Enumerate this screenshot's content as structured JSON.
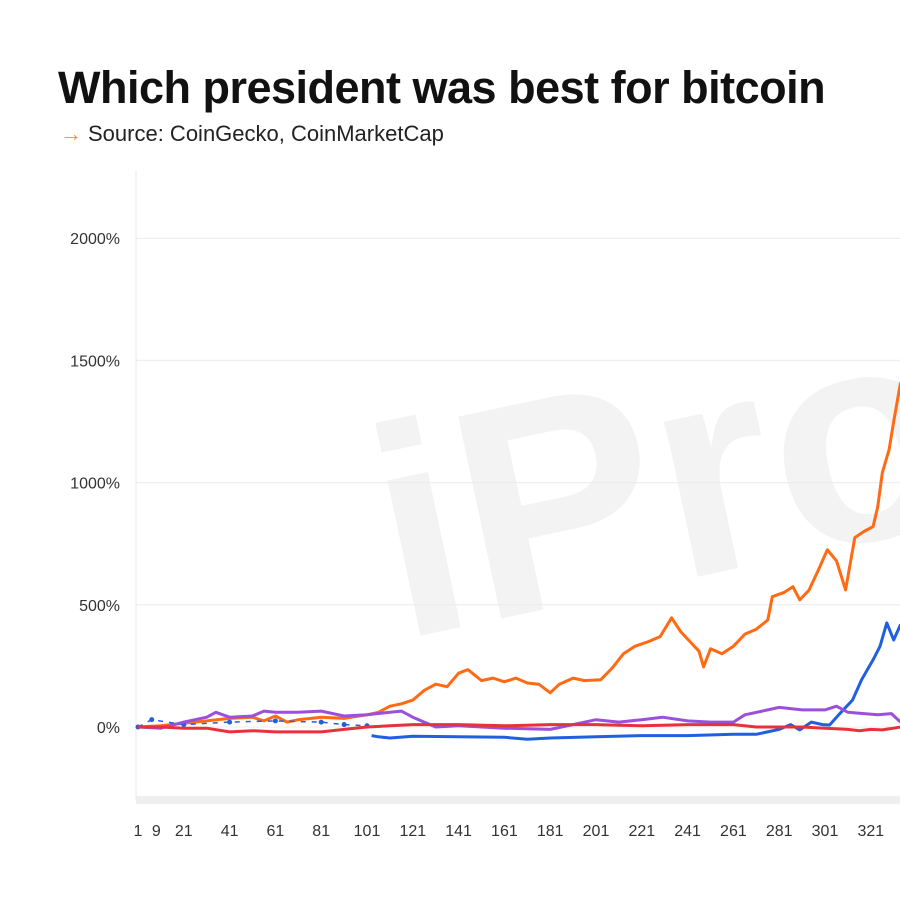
{
  "title": "Which president was best for bitcoin",
  "subtitle": {
    "arrow_icon": "arrow-right-icon",
    "text": "Source: CoinGecko, CoinMarketCap",
    "arrow_color": "#f7931a"
  },
  "watermark": "iProt",
  "chart_data": {
    "type": "line",
    "title": "Which president was best for bitcoin",
    "xlabel": "",
    "ylabel": "",
    "ylim": [
      -300,
      2300
    ],
    "xlim": [
      1,
      334
    ],
    "grid": true,
    "legend": "none",
    "y_ticks": [
      "2000%",
      "1500%",
      "1000%",
      "500%",
      "0%"
    ],
    "y_tick_values": [
      2000,
      1500,
      1000,
      500,
      0
    ],
    "x_ticks": [
      "1",
      "9",
      "21",
      "41",
      "61",
      "81",
      "101",
      "121",
      "141",
      "161",
      "181",
      "201",
      "221",
      "241",
      "261",
      "281",
      "301",
      "321"
    ],
    "x_tick_values": [
      1,
      9,
      21,
      41,
      61,
      81,
      101,
      121,
      141,
      161,
      181,
      201,
      221,
      241,
      261,
      281,
      301,
      321
    ],
    "series": [
      {
        "color": "#ff6a13",
        "x": [
          1,
          11,
          21,
          31,
          41,
          51,
          56,
          61,
          66,
          71,
          81,
          91,
          101,
          106,
          111,
          116,
          121,
          126,
          131,
          136,
          141,
          145,
          151,
          156,
          161,
          166,
          171,
          176,
          181,
          185,
          191,
          196,
          203,
          208,
          213,
          218,
          224,
          229,
          234,
          238,
          242,
          246,
          248,
          251,
          256,
          261,
          266,
          271,
          276,
          278,
          283,
          287,
          290,
          294,
          298,
          302,
          306,
          310,
          314,
          318,
          322,
          324,
          326,
          329,
          331,
          334
        ],
        "y": [
          0,
          5,
          15,
          25,
          35,
          40,
          25,
          45,
          20,
          30,
          40,
          35,
          50,
          60,
          85,
          95,
          110,
          150,
          175,
          165,
          220,
          235,
          190,
          200,
          185,
          200,
          180,
          175,
          140,
          175,
          200,
          190,
          193,
          240,
          300,
          330,
          350,
          370,
          447,
          390,
          350,
          310,
          246,
          320,
          300,
          330,
          380,
          400,
          438,
          533,
          550,
          574,
          520,
          560,
          640,
          725,
          680,
          561,
          775,
          800,
          820,
          900,
          1040,
          1135,
          1250,
          1410
        ]
      },
      {
        "color": "#1f5fe0",
        "x": [
          103,
          106,
          111,
          121,
          141,
          161,
          171,
          181,
          201,
          221,
          241,
          261,
          271,
          281,
          286,
          290,
          295,
          300,
          303,
          308,
          313,
          317,
          322,
          325,
          328,
          331,
          334
        ],
        "y": [
          -35,
          -40,
          -45,
          -38,
          -40,
          -42,
          -50,
          -45,
          -40,
          -35,
          -35,
          -30,
          -30,
          -10,
          10,
          -12,
          20,
          10,
          8,
          60,
          110,
          193,
          275,
          330,
          426,
          356,
          420
        ]
      },
      {
        "color": "#1f5fe0",
        "dashed": true,
        "x": [
          1,
          7,
          21,
          41,
          61,
          81,
          91,
          101
        ],
        "y": [
          0,
          30,
          10,
          20,
          25,
          20,
          10,
          5
        ]
      },
      {
        "color": "#9b4fdc",
        "x": [
          1,
          11,
          21,
          31,
          35,
          41,
          51,
          56,
          61,
          71,
          81,
          91,
          101,
          111,
          116,
          121,
          131,
          141,
          161,
          181,
          191,
          201,
          211,
          221,
          230,
          241,
          251,
          261,
          266,
          276,
          281,
          291,
          301,
          306,
          311,
          318,
          324,
          330,
          334
        ],
        "y": [
          0,
          -5,
          20,
          40,
          60,
          40,
          45,
          65,
          60,
          60,
          65,
          45,
          50,
          60,
          65,
          40,
          0,
          5,
          -5,
          -10,
          10,
          30,
          20,
          30,
          40,
          25,
          20,
          20,
          50,
          70,
          80,
          70,
          70,
          85,
          60,
          55,
          50,
          55,
          20
        ]
      },
      {
        "color": "#e8313a",
        "x": [
          1,
          11,
          21,
          31,
          41,
          51,
          61,
          71,
          81,
          91,
          101,
          111,
          121,
          141,
          161,
          181,
          201,
          221,
          241,
          261,
          271,
          281,
          291,
          301,
          311,
          316,
          321,
          326,
          334
        ],
        "y": [
          0,
          0,
          -5,
          -5,
          -20,
          -15,
          -20,
          -20,
          -20,
          -10,
          0,
          5,
          10,
          10,
          5,
          10,
          10,
          5,
          10,
          10,
          0,
          0,
          0,
          -5,
          -10,
          -15,
          -10,
          -12,
          0
        ]
      }
    ]
  }
}
